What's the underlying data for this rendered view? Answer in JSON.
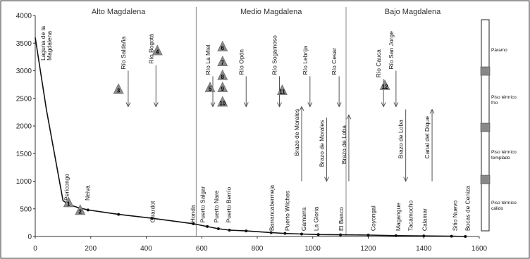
{
  "chart_data": {
    "type": "line",
    "xlim": [
      0,
      1600
    ],
    "ylim": [
      0,
      4000
    ],
    "x_ticks": [
      0,
      200,
      400,
      600,
      800,
      1000,
      1200,
      1400,
      1600
    ],
    "y_ticks": [
      0,
      500,
      1000,
      1500,
      2000,
      2500,
      3000,
      3500,
      4000
    ],
    "profile": [
      [
        0,
        3600
      ],
      [
        40,
        2300
      ],
      [
        100,
        650
      ],
      [
        120,
        580
      ],
      [
        150,
        530
      ],
      [
        190,
        480
      ],
      [
        300,
        400
      ],
      [
        420,
        330
      ],
      [
        570,
        230
      ],
      [
        620,
        180
      ],
      [
        660,
        140
      ],
      [
        700,
        115
      ],
      [
        760,
        100
      ],
      [
        850,
        70
      ],
      [
        900,
        55
      ],
      [
        960,
        45
      ],
      [
        1020,
        35
      ],
      [
        1100,
        30
      ],
      [
        1200,
        25
      ],
      [
        1300,
        15
      ],
      [
        1400,
        10
      ],
      [
        1500,
        5
      ],
      [
        1550,
        0
      ]
    ],
    "regions": [
      {
        "label": "Alto Magdalena",
        "x": 300
      },
      {
        "label": "Medio Magdalena",
        "x": 850
      },
      {
        "label": "Bajo Magdalena",
        "x": 1360
      }
    ],
    "dividers": [
      580,
      1120
    ],
    "places": [
      {
        "label": "Laguna de la Magdalena",
        "x": 5
      },
      {
        "label": "Pericongo",
        "x": 110
      },
      {
        "label": "Neiva",
        "x": 185
      },
      {
        "label": "Girardot",
        "x": 420
      },
      {
        "label": "Honda",
        "x": 565
      },
      {
        "label": "Puerto Salgar",
        "x": 600
      },
      {
        "label": "Puerto Nare",
        "x": 650
      },
      {
        "label": "Puerto Berrío",
        "x": 695
      },
      {
        "label": "Barrancabermeja",
        "x": 850
      },
      {
        "label": "Puerto Wilches",
        "x": 905
      },
      {
        "label": "Gamarra",
        "x": 965
      },
      {
        "label": "La Gloria",
        "x": 1010
      },
      {
        "label": "El Banco",
        "x": 1100
      },
      {
        "label": "Coyongal",
        "x": 1215
      },
      {
        "label": "Magangue",
        "x": 1305
      },
      {
        "label": "Tacamocho",
        "x": 1350
      },
      {
        "label": "Calamar",
        "x": 1400
      },
      {
        "label": "Sitio Nuevo",
        "x": 1510
      },
      {
        "label": "Bocas de Ceniza",
        "x": 1555
      }
    ],
    "tributaries": [
      {
        "label": "Río Saldaña",
        "x": 335,
        "dir": "down",
        "y_top": 3000,
        "y_bot": 2350
      },
      {
        "label": "Río Bogotá",
        "x": 435,
        "dir": "down",
        "y_top": 3100,
        "y_bot": 2350
      },
      {
        "label": "Río La Miel",
        "x": 640,
        "dir": "down",
        "y_top": 2900,
        "y_bot": 2350
      },
      {
        "label": "Río Opón",
        "x": 760,
        "dir": "down",
        "y_top": 2900,
        "y_bot": 2350
      },
      {
        "label": "Río Sogamoso",
        "x": 880,
        "dir": "down",
        "y_top": 2900,
        "y_bot": 2350
      },
      {
        "label": "Río Lebrija",
        "x": 990,
        "dir": "down",
        "y_top": 2900,
        "y_bot": 2350
      },
      {
        "label": "Río Cesar",
        "x": 1095,
        "dir": "down",
        "y_top": 2900,
        "y_bot": 2350
      },
      {
        "label": "Río Cauca",
        "x": 1255,
        "dir": "down",
        "y_top": 2850,
        "y_bot": 2350
      },
      {
        "label": "Río San Jorge",
        "x": 1300,
        "dir": "down",
        "y_top": 3000,
        "y_bot": 2350
      }
    ],
    "channels": [
      {
        "label": "Brazo de Morales",
        "x": 960,
        "dir": "up",
        "y_top": 2350,
        "y_bot": 1000
      },
      {
        "label": "Brazo de Morales",
        "x": 1050,
        "dir": "down",
        "y_top": 2150,
        "y_bot": 1000
      },
      {
        "label": "Brazo de Loba",
        "x": 1130,
        "dir": "up",
        "y_top": 2200,
        "y_bot": 1000
      },
      {
        "label": "Brazo de Loba",
        "x": 1335,
        "dir": "down",
        "y_top": 2300,
        "y_bot": 1000
      },
      {
        "label": "Canal del Dique",
        "x": 1430,
        "dir": "up",
        "y_top": 2300,
        "y_bot": 1000
      }
    ],
    "markers": [
      {
        "n": "1",
        "x": 120,
        "y": 600
      },
      {
        "n": "2",
        "x": 162,
        "y": 460
      },
      {
        "n": "3",
        "x": 300,
        "y": 2650
      },
      {
        "n": "4",
        "x": 440,
        "y": 3350
      },
      {
        "n": "5",
        "x": 630,
        "y": 2680
      },
      {
        "n": "6",
        "x": 675,
        "y": 3420
      },
      {
        "n": "7",
        "x": 675,
        "y": 3150
      },
      {
        "n": "8",
        "x": 675,
        "y": 2900
      },
      {
        "n": "9",
        "x": 675,
        "y": 2680
      },
      {
        "n": "10",
        "x": 675,
        "y": 2420
      },
      {
        "n": "11",
        "x": 890,
        "y": 2630
      },
      {
        "n": "12",
        "x": 1260,
        "y": 2720
      }
    ],
    "zones": [
      {
        "label": "Páramo",
        "row": 0
      },
      {
        "label": "Piso térmico frío",
        "row": 1
      },
      {
        "label": "Piso térmico templado",
        "row": 2
      },
      {
        "label": "Piso térmico cálido",
        "row": 3
      }
    ]
  }
}
